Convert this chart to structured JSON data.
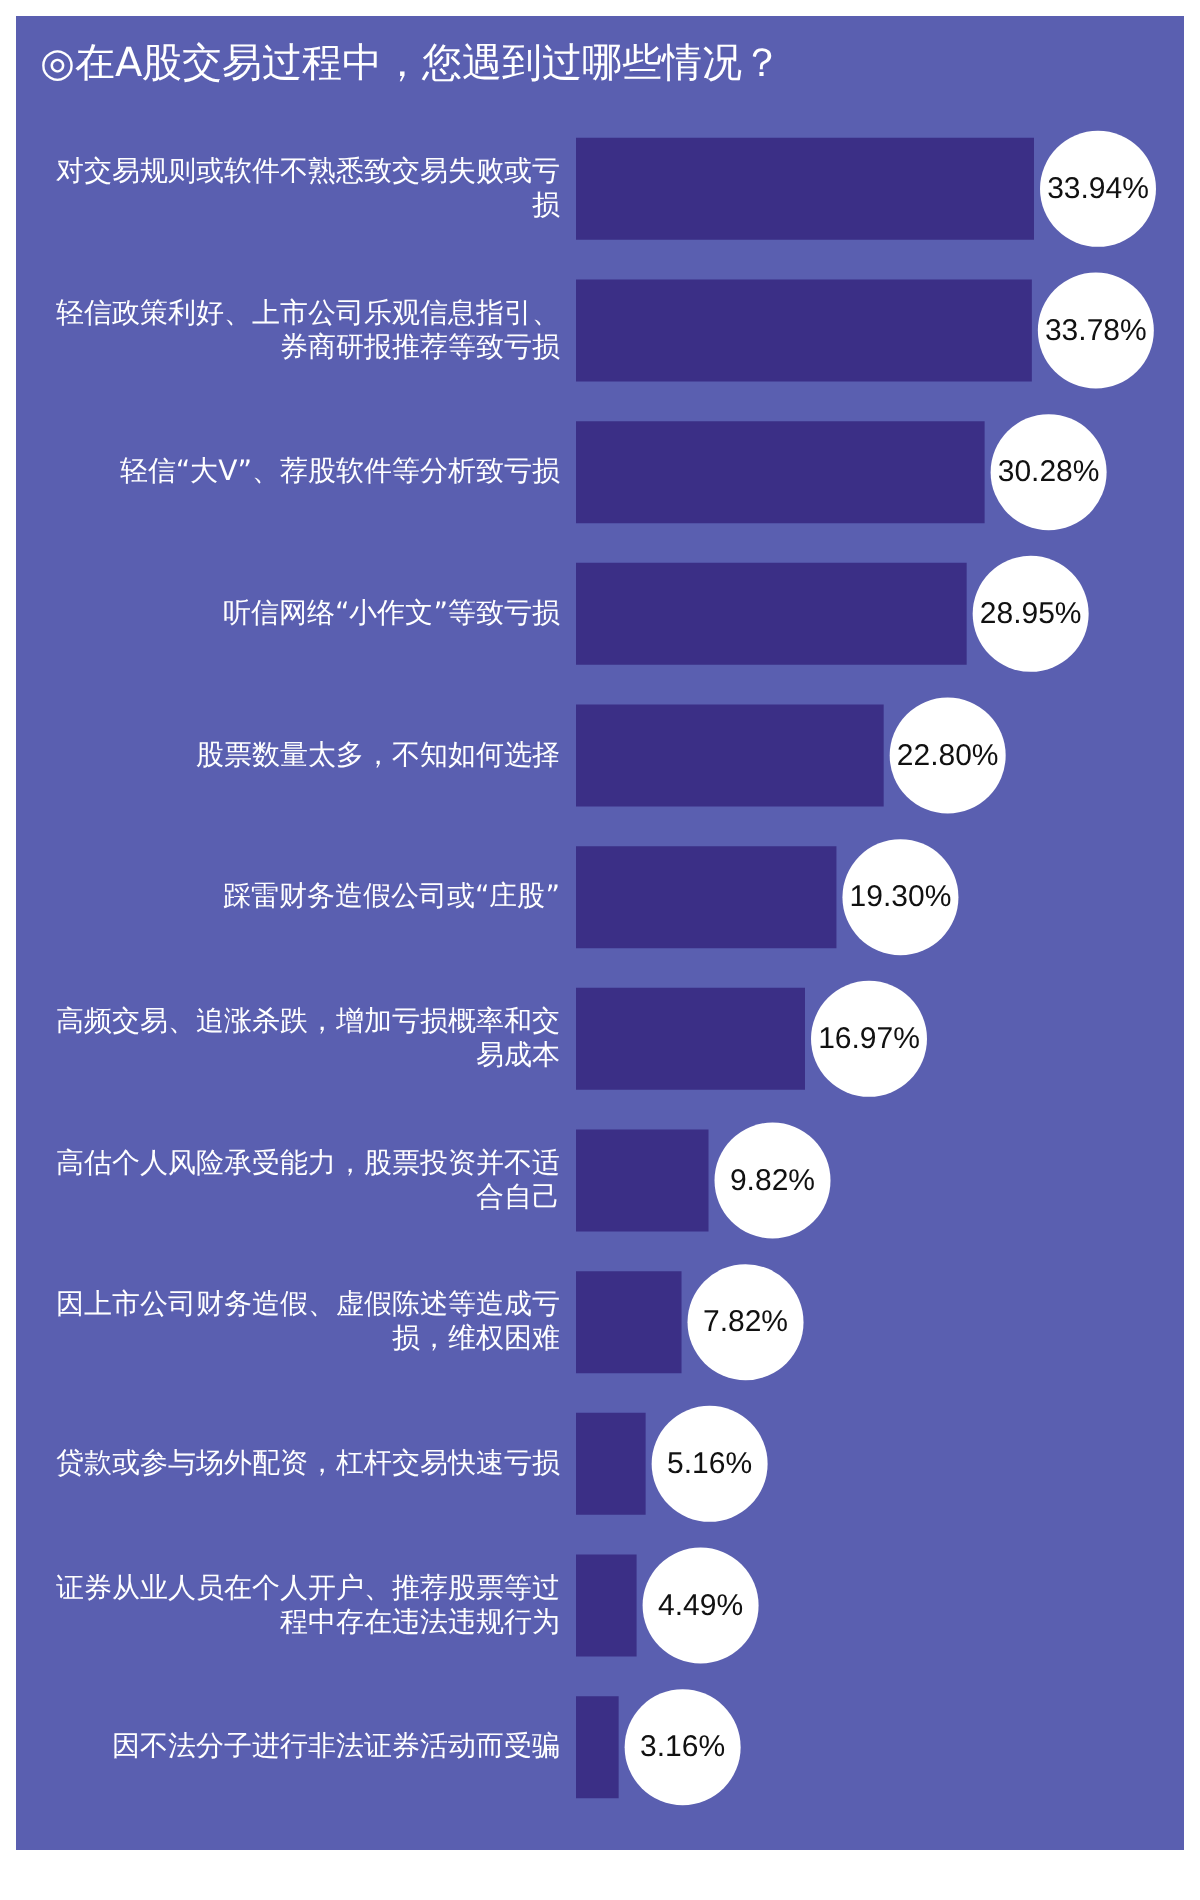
{
  "chart_data": {
    "type": "bar",
    "orientation": "horizontal",
    "title": "◎在A股交易过程中，您遇到过哪些情况？",
    "categories": [
      "对交易规则或软件不熟悉致交易失败或亏损",
      "轻信政策利好、上市公司乐观信息指引、券商研报推荐等致亏损",
      "轻信“大V”、荐股软件等分析致亏损",
      "听信网络“小作文”等致亏损",
      "股票数量太多，不知如何选择",
      "踩雷财务造假公司或“庄股”",
      "高频交易、追涨杀跌，增加亏损概率和交易成本",
      "高估个人风险承受能力，股票投资并不适合自己",
      "因上市公司财务造假、虚假陈述等造成亏损，维权困难",
      "贷款或参与场外配资，杠杆交易快速亏损",
      "证券从业人员在个人开户、推荐股票等过程中存在违法违规行为",
      "因不法分子进行非法证券活动而受骗"
    ],
    "values": [
      33.94,
      33.78,
      30.28,
      28.95,
      22.8,
      19.3,
      16.97,
      9.82,
      7.82,
      5.16,
      4.49,
      3.16
    ],
    "value_labels": [
      "33.94%",
      "33.78%",
      "30.28%",
      "28.95%",
      "22.80%",
      "19.30%",
      "16.97%",
      "9.82%",
      "7.82%",
      "5.16%",
      "4.49%",
      "3.16%"
    ],
    "color": "#3b2f86",
    "tick_labels": "y"
  }
}
